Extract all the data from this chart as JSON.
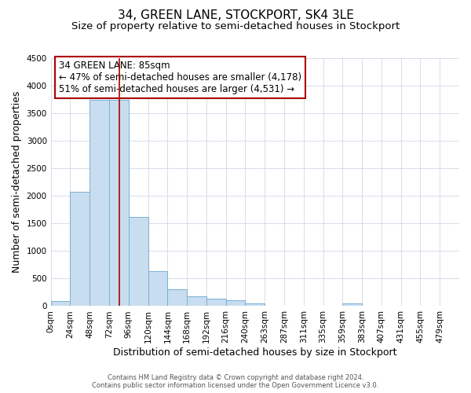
{
  "title": "34, GREEN LANE, STOCKPORT, SK4 3LE",
  "subtitle": "Size of property relative to semi-detached houses in Stockport",
  "xlabel": "Distribution of semi-detached houses by size in Stockport",
  "ylabel": "Number of semi-detached properties",
  "footer_line1": "Contains HM Land Registry data © Crown copyright and database right 2024.",
  "footer_line2": "Contains public sector information licensed under the Open Government Licence v3.0.",
  "bin_labels": [
    "0sqm",
    "24sqm",
    "48sqm",
    "72sqm",
    "96sqm",
    "120sqm",
    "144sqm",
    "168sqm",
    "192sqm",
    "216sqm",
    "240sqm",
    "263sqm",
    "287sqm",
    "311sqm",
    "335sqm",
    "359sqm",
    "383sqm",
    "407sqm",
    "431sqm",
    "455sqm",
    "479sqm"
  ],
  "bin_values": [
    90,
    2070,
    3750,
    3750,
    1620,
    630,
    300,
    175,
    140,
    100,
    55,
    0,
    0,
    0,
    0,
    45,
    0,
    0,
    0,
    0,
    0
  ],
  "bar_color": "#c8ddef",
  "bar_edge_color": "#7aafd4",
  "property_line_x": 85,
  "property_line_color": "#aa0000",
  "annotation_line1": "34 GREEN LANE: 85sqm",
  "annotation_line2": "← 47% of semi-detached houses are smaller (4,178)",
  "annotation_line3": "51% of semi-detached houses are larger (4,531) →",
  "ylim": [
    0,
    4500
  ],
  "yticks": [
    0,
    500,
    1000,
    1500,
    2000,
    2500,
    3000,
    3500,
    4000,
    4500
  ],
  "grid_color": "#d0d8e8",
  "background_color": "#ffffff",
  "box_edge_color": "#aa0000",
  "title_fontsize": 11,
  "subtitle_fontsize": 9.5,
  "axis_label_fontsize": 9,
  "tick_fontsize": 7.5,
  "annotation_fontsize": 8.5,
  "footer_fontsize": 6
}
